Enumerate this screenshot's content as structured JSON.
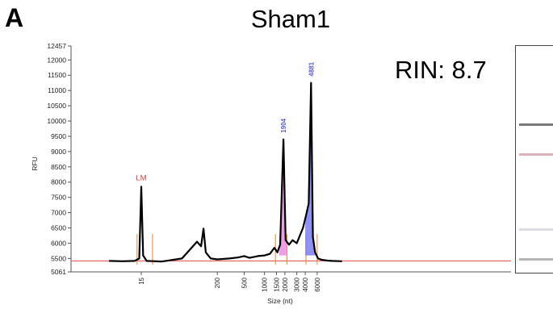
{
  "panel_label": "A",
  "title": "Sham1",
  "rin_label": "RIN: 8.7",
  "colors": {
    "trace": "#000000",
    "baseline": "#e34a4a",
    "marker_line": "#e8823a",
    "peak_pink": "#e98ee2",
    "peak_blue": "#7b7ff0",
    "label_red": "#e03b3b",
    "label_blue": "#5a5ad8",
    "axis": "#555555"
  },
  "chart_data": {
    "type": "line",
    "title": "Sham1",
    "xlabel": "Size (nt)",
    "ylabel": "RFU",
    "x_scale": "log",
    "y_range": [
      5061,
      12457
    ],
    "y_ticks": [
      "12457",
      "12000",
      "11500",
      "11000",
      "10500",
      "10000",
      "9500",
      "9000",
      "8500",
      "8000",
      "7500",
      "7000",
      "6500",
      "6000",
      "5500",
      "5061"
    ],
    "x_ticks": [
      "15",
      "200",
      "500",
      "1000",
      "1500",
      "2000",
      "3000",
      "4000",
      "6000"
    ],
    "annotations": [
      {
        "label": "LM",
        "size_nt": 15,
        "color": "label_red"
      },
      {
        "label": "1904",
        "size_nt": 1904,
        "color": "label_blue"
      },
      {
        "label": "4881",
        "size_nt": 4881,
        "color": "label_blue"
      }
    ],
    "series": [
      {
        "values_note": "RFU signal vs size",
        "points": [
          [
            5,
            5420
          ],
          [
            8,
            5410
          ],
          [
            12,
            5420
          ],
          [
            14,
            5500
          ],
          [
            15,
            7850
          ],
          [
            16,
            5600
          ],
          [
            18,
            5420
          ],
          [
            30,
            5400
          ],
          [
            60,
            5500
          ],
          [
            100,
            6050
          ],
          [
            115,
            5900
          ],
          [
            125,
            6480
          ],
          [
            135,
            5700
          ],
          [
            160,
            5500
          ],
          [
            200,
            5470
          ],
          [
            300,
            5500
          ],
          [
            400,
            5530
          ],
          [
            500,
            5580
          ],
          [
            600,
            5520
          ],
          [
            800,
            5580
          ],
          [
            1000,
            5600
          ],
          [
            1200,
            5650
          ],
          [
            1400,
            5850
          ],
          [
            1550,
            5700
          ],
          [
            1700,
            5950
          ],
          [
            1904,
            9400
          ],
          [
            2050,
            6100
          ],
          [
            2300,
            5950
          ],
          [
            2600,
            6100
          ],
          [
            3000,
            6000
          ],
          [
            3400,
            6300
          ],
          [
            3700,
            6500
          ],
          [
            4100,
            6900
          ],
          [
            4500,
            7300
          ],
          [
            4881,
            11250
          ],
          [
            5200,
            6200
          ],
          [
            5600,
            5700
          ],
          [
            6200,
            5500
          ],
          [
            7000,
            5460
          ],
          [
            8500,
            5430
          ],
          [
            10000,
            5420
          ],
          [
            14000,
            5410
          ]
        ]
      }
    ],
    "marker_lines_nt": [
      13,
      22,
      1450,
      2150,
      4100,
      6000
    ],
    "filled_peaks": [
      {
        "from_nt": 1650,
        "to_nt": 2150,
        "color": "peak_pink"
      },
      {
        "from_nt": 4000,
        "to_nt": 5600,
        "color": "peak_blue"
      }
    ]
  },
  "gel_bands": [
    {
      "position": 0.34,
      "color": "#6b6b6b",
      "opacity": 0.9
    },
    {
      "position": 0.47,
      "color": "#9b1f3a",
      "opacity": 0.35
    },
    {
      "position": 0.8,
      "color": "#7a6a9a",
      "opacity": 0.25
    },
    {
      "position": 0.93,
      "color": "#6b6b6b",
      "opacity": 0.5
    }
  ]
}
